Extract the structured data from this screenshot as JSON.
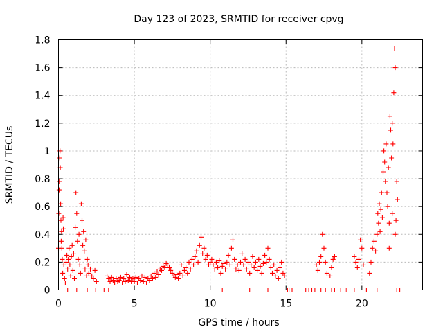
{
  "chart_data": {
    "type": "scatter",
    "title": "Day 123 of 2023, SRMTID for receiver cpvg",
    "xlabel": "GPS time / hours",
    "ylabel": "SRMTID / TECUs",
    "xlim": [
      0,
      24
    ],
    "ylim": [
      0,
      1.8
    ],
    "x_ticks": [
      0,
      5,
      10,
      15,
      20
    ],
    "x_tick_labels": [
      "0",
      "5",
      "10",
      "15",
      "20"
    ],
    "y_ticks": [
      0,
      0.2,
      0.4,
      0.6,
      0.8,
      1.0,
      1.2,
      1.4,
      1.6,
      1.8
    ],
    "y_tick_labels": [
      "0",
      "0.2",
      "0.4",
      "0.6",
      "0.8",
      "1",
      "1.2",
      "1.4",
      "1.6",
      "1.8"
    ],
    "grid": true,
    "marker": "+",
    "color": "#ff0000",
    "series": [
      {
        "name": "SRMTID",
        "points": [
          [
            0.0,
            0.3
          ],
          [
            0.02,
            0.55
          ],
          [
            0.04,
            0.72
          ],
          [
            0.06,
            0.78
          ],
          [
            0.08,
            0.95
          ],
          [
            0.1,
            1.0
          ],
          [
            0.12,
            0.88
          ],
          [
            0.14,
            0.62
          ],
          [
            0.16,
            0.5
          ],
          [
            0.18,
            0.35
          ],
          [
            0.2,
            0.42
          ],
          [
            0.22,
            0.3
          ],
          [
            0.25,
            0.22
          ],
          [
            0.28,
            0.12
          ],
          [
            0.3,
            0.52
          ],
          [
            0.32,
            0.44
          ],
          [
            0.35,
            0.18
          ],
          [
            0.4,
            0.08
          ],
          [
            0.45,
            0.05
          ],
          [
            0.5,
            0.2
          ],
          [
            0.55,
            0.25
          ],
          [
            0.6,
            0.15
          ],
          [
            0.65,
            0.22
          ],
          [
            0.7,
            0.3
          ],
          [
            0.75,
            0.18
          ],
          [
            0.8,
            0.1
          ],
          [
            0.85,
            0.24
          ],
          [
            0.9,
            0.32
          ],
          [
            0.95,
            0.14
          ],
          [
            1.0,
            0.26
          ],
          [
            1.05,
            0.08
          ],
          [
            1.1,
            0.45
          ],
          [
            1.15,
            0.7
          ],
          [
            1.2,
            0.55
          ],
          [
            1.25,
            0.35
          ],
          [
            1.3,
            0.22
          ],
          [
            1.35,
            0.4
          ],
          [
            1.4,
            0.18
          ],
          [
            1.45,
            0.12
          ],
          [
            1.5,
            0.62
          ],
          [
            1.55,
            0.5
          ],
          [
            1.6,
            0.32
          ],
          [
            1.65,
            0.42
          ],
          [
            1.7,
            0.28
          ],
          [
            1.75,
            0.15
          ],
          [
            1.8,
            0.36
          ],
          [
            1.85,
            0.1
          ],
          [
            1.9,
            0.22
          ],
          [
            1.95,
            0.18
          ],
          [
            2.0,
            0.12
          ],
          [
            2.1,
            0.15
          ],
          [
            2.2,
            0.1
          ],
          [
            2.3,
            0.08
          ],
          [
            2.4,
            0.14
          ],
          [
            2.5,
            0.06
          ],
          [
            2.45,
            0.0
          ],
          [
            1.9,
            0.0
          ],
          [
            1.2,
            0.0
          ],
          [
            0.6,
            0.0
          ],
          [
            3.0,
            0.0
          ],
          [
            3.3,
            0.0
          ],
          [
            3.2,
            0.1
          ],
          [
            3.3,
            0.08
          ],
          [
            3.4,
            0.06
          ],
          [
            3.5,
            0.09
          ],
          [
            3.6,
            0.07
          ],
          [
            3.7,
            0.05
          ],
          [
            3.8,
            0.08
          ],
          [
            3.9,
            0.06
          ],
          [
            4.0,
            0.07
          ],
          [
            4.1,
            0.09
          ],
          [
            4.2,
            0.05
          ],
          [
            4.3,
            0.08
          ],
          [
            4.4,
            0.06
          ],
          [
            4.5,
            0.11
          ],
          [
            4.6,
            0.07
          ],
          [
            4.7,
            0.09
          ],
          [
            4.8,
            0.06
          ],
          [
            4.9,
            0.08
          ],
          [
            5.0,
            0.06
          ],
          [
            5.1,
            0.09
          ],
          [
            5.2,
            0.05
          ],
          [
            5.3,
            0.08
          ],
          [
            5.4,
            0.07
          ],
          [
            5.5,
            0.1
          ],
          [
            5.6,
            0.06
          ],
          [
            5.7,
            0.09
          ],
          [
            5.8,
            0.05
          ],
          [
            5.9,
            0.08
          ],
          [
            6.0,
            0.07
          ],
          [
            6.1,
            0.1
          ],
          [
            6.2,
            0.08
          ],
          [
            6.3,
            0.12
          ],
          [
            6.4,
            0.09
          ],
          [
            6.5,
            0.13
          ],
          [
            6.6,
            0.11
          ],
          [
            6.7,
            0.15
          ],
          [
            6.8,
            0.14
          ],
          [
            6.9,
            0.17
          ],
          [
            7.0,
            0.16
          ],
          [
            7.1,
            0.19
          ],
          [
            7.2,
            0.18
          ],
          [
            7.3,
            0.16
          ],
          [
            7.4,
            0.14
          ],
          [
            7.5,
            0.12
          ],
          [
            7.6,
            0.1
          ],
          [
            7.7,
            0.09
          ],
          [
            7.8,
            0.11
          ],
          [
            7.9,
            0.08
          ],
          [
            8.0,
            0.12
          ],
          [
            8.1,
            0.18
          ],
          [
            8.2,
            0.1
          ],
          [
            8.3,
            0.14
          ],
          [
            8.4,
            0.16
          ],
          [
            8.5,
            0.12
          ],
          [
            8.6,
            0.2
          ],
          [
            8.7,
            0.15
          ],
          [
            8.8,
            0.22
          ],
          [
            8.9,
            0.18
          ],
          [
            9.0,
            0.24
          ],
          [
            9.1,
            0.28
          ],
          [
            9.2,
            0.2
          ],
          [
            9.3,
            0.32
          ],
          [
            9.4,
            0.38
          ],
          [
            9.5,
            0.26
          ],
          [
            9.6,
            0.3
          ],
          [
            9.7,
            0.22
          ],
          [
            9.8,
            0.25
          ],
          [
            9.9,
            0.18
          ],
          [
            10.0,
            0.2
          ],
          [
            10.1,
            0.22
          ],
          [
            10.2,
            0.18
          ],
          [
            10.3,
            0.15
          ],
          [
            10.4,
            0.2
          ],
          [
            10.5,
            0.16
          ],
          [
            10.6,
            0.21
          ],
          [
            10.7,
            0.12
          ],
          [
            10.8,
            0.17
          ],
          [
            10.9,
            0.19
          ],
          [
            11.0,
            0.15
          ],
          [
            11.1,
            0.2
          ],
          [
            11.2,
            0.25
          ],
          [
            11.3,
            0.18
          ],
          [
            11.4,
            0.3
          ],
          [
            11.5,
            0.36
          ],
          [
            11.6,
            0.22
          ],
          [
            11.7,
            0.15
          ],
          [
            11.8,
            0.18
          ],
          [
            11.9,
            0.14
          ],
          [
            12.0,
            0.2
          ],
          [
            12.1,
            0.26
          ],
          [
            12.2,
            0.18
          ],
          [
            12.3,
            0.22
          ],
          [
            12.4,
            0.15
          ],
          [
            12.5,
            0.2
          ],
          [
            12.6,
            0.12
          ],
          [
            12.7,
            0.18
          ],
          [
            12.8,
            0.24
          ],
          [
            12.9,
            0.16
          ],
          [
            13.0,
            0.2
          ],
          [
            13.1,
            0.14
          ],
          [
            13.2,
            0.22
          ],
          [
            13.3,
            0.17
          ],
          [
            13.4,
            0.12
          ],
          [
            13.5,
            0.19
          ],
          [
            13.6,
            0.25
          ],
          [
            13.7,
            0.2
          ],
          [
            13.8,
            0.3
          ],
          [
            13.9,
            0.22
          ],
          [
            14.0,
            0.16
          ],
          [
            14.1,
            0.12
          ],
          [
            14.2,
            0.18
          ],
          [
            14.3,
            0.1
          ],
          [
            14.4,
            0.14
          ],
          [
            14.5,
            0.08
          ],
          [
            14.6,
            0.16
          ],
          [
            14.7,
            0.2
          ],
          [
            14.8,
            0.12
          ],
          [
            14.9,
            0.1
          ],
          [
            10.8,
            0.0
          ],
          [
            12.6,
            0.0
          ],
          [
            13.8,
            0.0
          ],
          [
            15.1,
            0.0
          ],
          [
            15.2,
            0.0
          ],
          [
            15.4,
            0.0
          ],
          [
            16.3,
            0.0
          ],
          [
            16.5,
            0.0
          ],
          [
            16.7,
            0.0
          ],
          [
            16.9,
            0.0
          ],
          [
            17.0,
            0.18
          ],
          [
            17.1,
            0.14
          ],
          [
            17.2,
            0.2
          ],
          [
            17.3,
            0.24
          ],
          [
            17.4,
            0.4
          ],
          [
            17.5,
            0.3
          ],
          [
            17.6,
            0.2
          ],
          [
            17.7,
            0.12
          ],
          [
            17.3,
            0.0
          ],
          [
            17.6,
            0.0
          ],
          [
            17.9,
            0.1
          ],
          [
            18.0,
            0.16
          ],
          [
            18.1,
            0.22
          ],
          [
            18.2,
            0.24
          ],
          [
            18.0,
            0.0
          ],
          [
            18.2,
            0.0
          ],
          [
            18.6,
            0.0
          ],
          [
            18.9,
            0.0
          ],
          [
            19.0,
            0.0
          ],
          [
            19.5,
            0.24
          ],
          [
            19.6,
            0.2
          ],
          [
            19.7,
            0.16
          ],
          [
            19.8,
            0.22
          ],
          [
            19.9,
            0.36
          ],
          [
            20.0,
            0.3
          ],
          [
            20.1,
            0.18
          ],
          [
            19.5,
            0.0
          ],
          [
            20.3,
            0.0
          ],
          [
            20.5,
            0.12
          ],
          [
            20.6,
            0.2
          ],
          [
            20.7,
            0.3
          ],
          [
            20.8,
            0.35
          ],
          [
            20.9,
            0.28
          ],
          [
            21.0,
            0.4
          ],
          [
            21.05,
            0.55
          ],
          [
            21.1,
            0.48
          ],
          [
            21.15,
            0.62
          ],
          [
            21.2,
            0.42
          ],
          [
            21.25,
            0.58
          ],
          [
            21.3,
            0.7
          ],
          [
            21.35,
            0.52
          ],
          [
            21.4,
            0.85
          ],
          [
            21.45,
            1.0
          ],
          [
            21.5,
            0.92
          ],
          [
            21.55,
            0.78
          ],
          [
            21.6,
            1.05
          ],
          [
            21.65,
            0.7
          ],
          [
            21.7,
            0.6
          ],
          [
            21.75,
            0.88
          ],
          [
            21.8,
            0.48
          ],
          [
            21.85,
            1.25
          ],
          [
            21.9,
            1.15
          ],
          [
            21.95,
            0.95
          ],
          [
            22.0,
            1.2
          ],
          [
            22.05,
            1.05
          ],
          [
            22.1,
            1.42
          ],
          [
            22.15,
            1.74
          ],
          [
            22.2,
            1.6
          ],
          [
            22.25,
            0.5
          ],
          [
            22.3,
            0.78
          ],
          [
            22.35,
            0.65
          ],
          [
            22.0,
            0.55
          ],
          [
            21.8,
            0.3
          ],
          [
            22.2,
            0.4
          ],
          [
            21.0,
            0.0
          ],
          [
            22.3,
            0.0
          ],
          [
            22.5,
            0.0
          ]
        ]
      }
    ]
  }
}
